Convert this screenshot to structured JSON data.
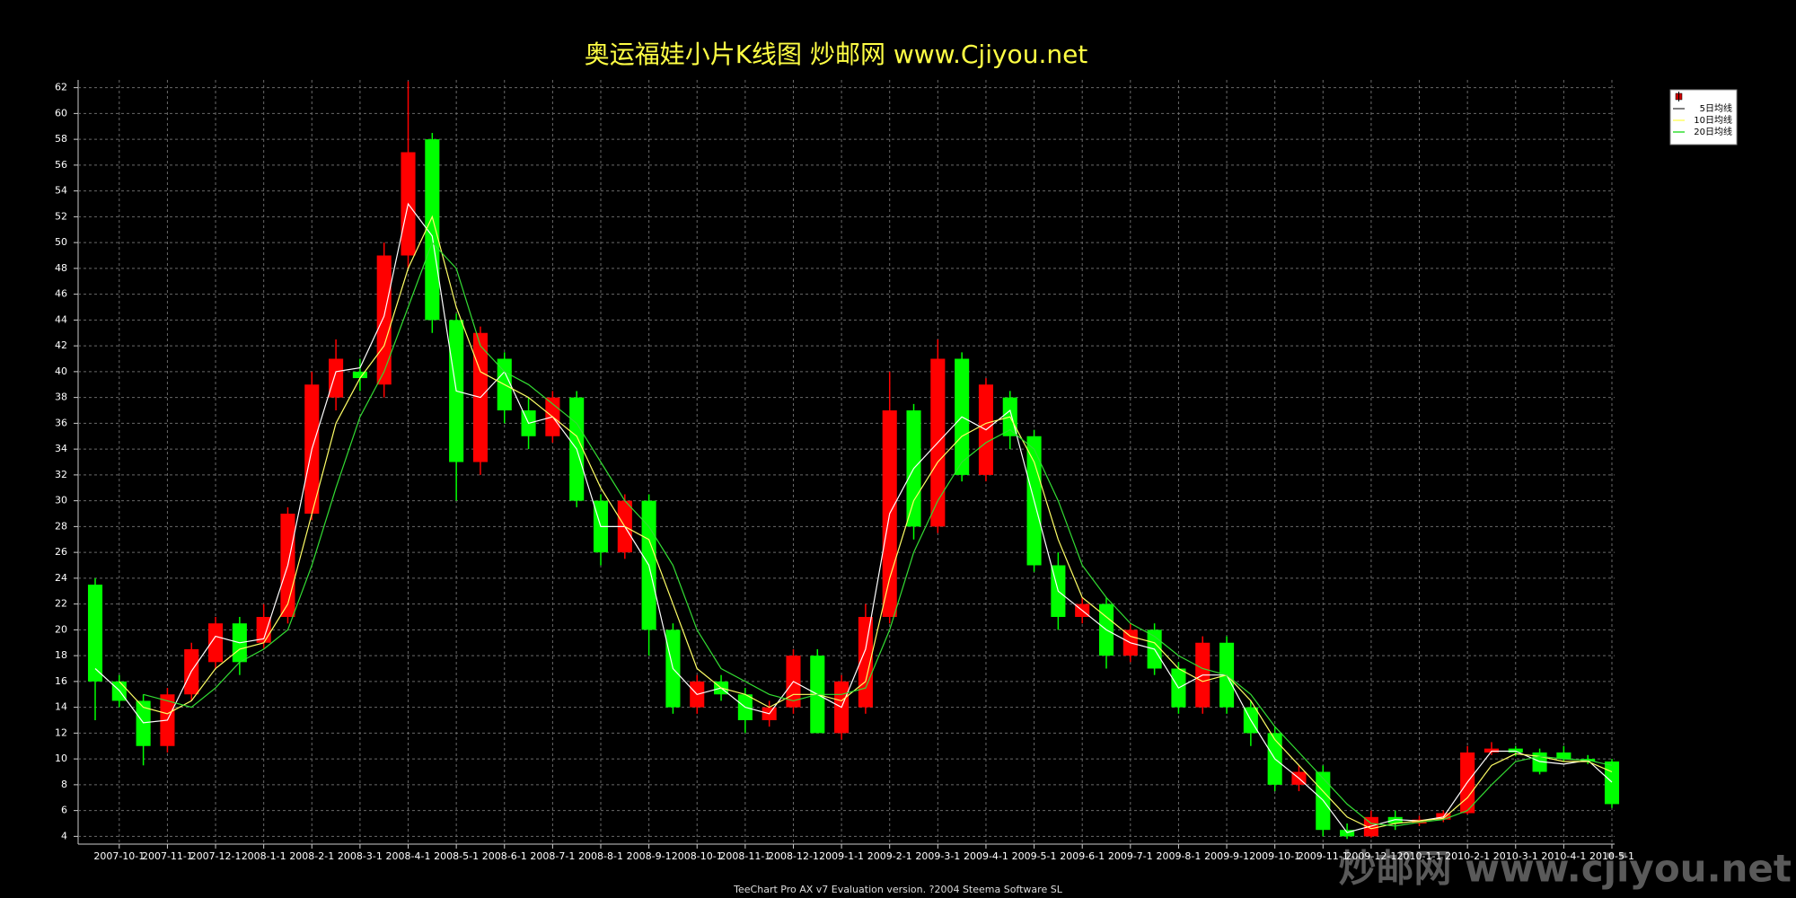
{
  "chart_data": {
    "type": "candlestick",
    "title": "奥运福娃小片K线图  炒邮网 www.Cjiyou.net",
    "footer": "TeeChart Pro AX v7 Evaluation version. ?2004 Steema Software SL",
    "watermark": "炒邮网 www.cjiyou.net",
    "categories": [
      null,
      "2007-10-1",
      null,
      "2007-11-1",
      null,
      "2007-12-1",
      null,
      "2008-1-1",
      null,
      "2008-2-1",
      null,
      "2008-3-1",
      null,
      "2008-4-1",
      null,
      "2008-5-1",
      null,
      "2008-6-1",
      null,
      "2008-7-1",
      null,
      "2008-8-1",
      null,
      "2008-9-1",
      null,
      "2008-10-1",
      null,
      "2008-11-1",
      null,
      "2008-12-1",
      null,
      "2009-1-1",
      null,
      "2009-2-1",
      null,
      "2009-3-1",
      null,
      "2009-4-1",
      null,
      "2009-5-1",
      null,
      "2009-6-1",
      null,
      "2009-7-1",
      null,
      "2009-8-1",
      null,
      "2009-9-1",
      null,
      "2009-10-1",
      null,
      "2009-11-1",
      null,
      "2009-12-1",
      null,
      "2010-1-1",
      null,
      "2010-2-1",
      null,
      "2010-3-1",
      null,
      "2010-4-1",
      null,
      "2010-5-1"
    ],
    "open": [
      23.5,
      16,
      14.5,
      11,
      15,
      17.5,
      20.5,
      19,
      21,
      29,
      38,
      40,
      39,
      49,
      58,
      44,
      33,
      41,
      37,
      35,
      38,
      30,
      26,
      30,
      20,
      14,
      16,
      15,
      13,
      14,
      18,
      12,
      14,
      21,
      37,
      28,
      41,
      32,
      38,
      35,
      25,
      21,
      22,
      18,
      20,
      17,
      14,
      19,
      14,
      12,
      8,
      9,
      4.5,
      4,
      5.5,
      5,
      5.3,
      5.8,
      10.5,
      10.8,
      10.5,
      10.5,
      10,
      9.8
    ],
    "high": [
      24,
      16.5,
      15,
      15.5,
      19,
      21,
      21,
      22,
      29.5,
      40,
      42.5,
      41,
      50,
      62.5,
      58.5,
      44.5,
      43.5,
      41.5,
      38,
      38.5,
      38.5,
      30.5,
      30.5,
      30.5,
      20.5,
      16.5,
      16.5,
      15.5,
      14.5,
      18.5,
      18.5,
      16.5,
      22,
      40,
      37.5,
      42.5,
      41.5,
      39.5,
      38.5,
      35.5,
      26,
      22.5,
      22.5,
      20.5,
      20.5,
      17.5,
      19.5,
      19.5,
      14.5,
      12.5,
      9.5,
      9.5,
      5,
      6,
      6,
      5.6,
      6,
      11,
      11.3,
      11,
      10.8,
      11,
      10.3,
      10
    ],
    "low": [
      13,
      14,
      9.5,
      10.5,
      14.5,
      17,
      16.5,
      18.5,
      20.5,
      28.5,
      37,
      38.5,
      38,
      48,
      43,
      30,
      32,
      36,
      34,
      34.5,
      29.5,
      25,
      25.5,
      18,
      13.5,
      13.5,
      14.5,
      12,
      12.5,
      13.5,
      12,
      11.5,
      13.5,
      20.5,
      27,
      27.5,
      31.5,
      31.5,
      34,
      24.5,
      20,
      20.5,
      17,
      17.5,
      16.5,
      13.5,
      13.5,
      13.5,
      11,
      7.5,
      7.5,
      4,
      3.8,
      3.9,
      4.5,
      4.8,
      5.1,
      5.7,
      10.3,
      10.2,
      8.8,
      9.8,
      9.6,
      6.2
    ],
    "close": [
      16,
      14.5,
      11,
      15,
      18.5,
      20.5,
      17.5,
      21,
      29,
      39,
      41,
      39.5,
      49,
      57,
      44,
      33,
      43,
      37,
      35,
      38,
      30,
      26,
      30,
      20,
      14,
      16,
      15,
      13,
      14,
      18,
      12,
      16,
      21,
      37,
      28,
      41,
      32,
      39,
      35,
      25,
      21,
      22,
      18,
      20,
      17,
      14,
      19,
      14,
      12,
      8,
      9,
      4.5,
      4,
      5.5,
      5,
      5.3,
      5.8,
      10.5,
      10.8,
      10.5,
      9,
      10,
      9.8,
      6.5
    ],
    "up_color": "#ff0000",
    "down_color": "#00ff00",
    "series": [
      {
        "name": "5日均线",
        "color": "#ffffff",
        "values": [
          17,
          15.3,
          12.8,
          13,
          16.8,
          19.5,
          19,
          19.3,
          25,
          34,
          40,
          40.3,
          44.3,
          53,
          50.5,
          38.5,
          38,
          40,
          36,
          36.5,
          34,
          28,
          28,
          25,
          17,
          15,
          15.5,
          14,
          13.5,
          16,
          15,
          14,
          18.5,
          29,
          32.5,
          34.5,
          36.5,
          35.5,
          37,
          30,
          23,
          21.5,
          20,
          19,
          18.5,
          15.5,
          16.5,
          16.5,
          13,
          10,
          8.5,
          6.8,
          4.3,
          4.8,
          5.3,
          5.2,
          5.5,
          8.2,
          10.6,
          10.6,
          9.8,
          9.6,
          9.9,
          8.2
        ]
      },
      {
        "name": "10日均线",
        "color": "#ffff66",
        "values": [
          null,
          16,
          14,
          13.5,
          14.5,
          17,
          18.5,
          19,
          22,
          29,
          36,
          39.5,
          42,
          48,
          52,
          45,
          40,
          39,
          38,
          36.5,
          35,
          31,
          28,
          27,
          22,
          17,
          15.5,
          15,
          14,
          15,
          15,
          14.5,
          16,
          24,
          30,
          33,
          35,
          36,
          36.5,
          33,
          27,
          22.5,
          21,
          19.5,
          19,
          17,
          16,
          16.5,
          14.5,
          11.5,
          9.5,
          7.5,
          5.5,
          4.6,
          5,
          5.2,
          5.4,
          7,
          9.5,
          10.4,
          10.2,
          9.8,
          9.8,
          9
        ]
      },
      {
        "name": "20日均线",
        "color": "#33dd33",
        "values": [
          null,
          null,
          15,
          14.5,
          14,
          15.5,
          17.5,
          18.5,
          20,
          25,
          31,
          36.5,
          40,
          45,
          50,
          48,
          42,
          40,
          39,
          37.5,
          36,
          33,
          30,
          28,
          25,
          20,
          17,
          16,
          15,
          14.5,
          15,
          15,
          15.5,
          20,
          26,
          30,
          33,
          34.5,
          35.5,
          34,
          30,
          25,
          22.5,
          20.5,
          19.5,
          18,
          17,
          16.5,
          15,
          12.5,
          10.5,
          8.5,
          6.5,
          5,
          4.8,
          5.1,
          5.3,
          6,
          8,
          9.8,
          10.2,
          10,
          9.9,
          9.5
        ]
      }
    ],
    "ylim": [
      3.4,
      62.6
    ],
    "yticks": [
      4,
      6,
      8,
      10,
      12,
      14,
      16,
      18,
      20,
      22,
      24,
      26,
      28,
      30,
      32,
      34,
      36,
      38,
      40,
      42,
      44,
      46,
      48,
      50,
      52,
      54,
      56,
      58,
      60,
      62
    ],
    "grid": true,
    "legend": "top-right"
  }
}
